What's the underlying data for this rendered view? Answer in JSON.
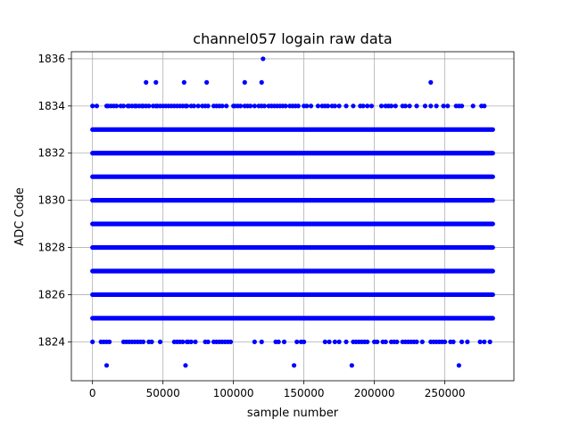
{
  "chart_data": {
    "type": "scatter",
    "title": "channel057 logain raw data",
    "xlabel": "sample number",
    "ylabel": "ADC Code",
    "xlim": [
      -15000,
      299000
    ],
    "ylim": [
      1822.35,
      1836.3
    ],
    "xticks": [
      0,
      50000,
      100000,
      150000,
      200000,
      250000
    ],
    "yticks": [
      1824,
      1826,
      1828,
      1830,
      1832,
      1834,
      1836
    ],
    "grid": true,
    "marker_color": "#0000ff",
    "x_range": [
      0,
      284000
    ],
    "dense_levels": [
      1825,
      1826,
      1827,
      1828,
      1829,
      1830,
      1831,
      1832,
      1833
    ],
    "sparse_level_1834_x": [
      0,
      3000,
      10000,
      11000,
      13000,
      15000,
      17000,
      20000,
      22000,
      25000,
      26000,
      28000,
      30000,
      31000,
      33000,
      35000,
      36000,
      38000,
      40000,
      43000,
      45000,
      46000,
      48000,
      50000,
      52000,
      54000,
      56000,
      58000,
      60000,
      62000,
      64000,
      66000,
      67000,
      70000,
      72000,
      75000,
      78000,
      80000,
      82000,
      86000,
      88000,
      90000,
      92000,
      95000,
      100000,
      101000,
      103000,
      105000,
      108000,
      110000,
      112000,
      115000,
      118000,
      120000,
      122000,
      125000,
      127000,
      129000,
      131000,
      133000,
      135000,
      137000,
      140000,
      142000,
      144000,
      146000,
      150000,
      152000,
      155000,
      160000,
      163000,
      165000,
      167000,
      170000,
      172000,
      175000,
      180000,
      185000,
      190000,
      192000,
      195000,
      198000,
      205000,
      208000,
      210000,
      212000,
      215000,
      220000,
      222000,
      225000,
      230000,
      236000,
      240000,
      244000,
      249000,
      252000,
      258000,
      260000,
      262000,
      270000,
      276000,
      278000
    ],
    "sparse_level_1824_x": [
      0,
      6000,
      8000,
      10000,
      12000,
      22000,
      24000,
      26000,
      28000,
      30000,
      32000,
      34000,
      36000,
      40000,
      42000,
      48000,
      58000,
      60000,
      62000,
      64000,
      67000,
      68000,
      70000,
      73000,
      80000,
      82000,
      86000,
      88000,
      90000,
      92000,
      94000,
      96000,
      98000,
      115000,
      120000,
      130000,
      132000,
      136000,
      145000,
      148000,
      150000,
      165000,
      168000,
      172000,
      175000,
      180000,
      185000,
      187000,
      189000,
      191000,
      193000,
      195000,
      200000,
      202000,
      206000,
      208000,
      212000,
      214000,
      216000,
      220000,
      222000,
      224000,
      226000,
      228000,
      230000,
      234000,
      240000,
      242000,
      244000,
      246000,
      248000,
      250000,
      254000,
      256000,
      262000,
      266000,
      275000,
      278000,
      282000
    ],
    "outliers": [
      {
        "x": 38000,
        "y": 1835
      },
      {
        "x": 45000,
        "y": 1835
      },
      {
        "x": 65000,
        "y": 1835
      },
      {
        "x": 81000,
        "y": 1835
      },
      {
        "x": 108000,
        "y": 1835
      },
      {
        "x": 120000,
        "y": 1835
      },
      {
        "x": 121000,
        "y": 1836
      },
      {
        "x": 240000,
        "y": 1835
      },
      {
        "x": 10000,
        "y": 1823
      },
      {
        "x": 66000,
        "y": 1823
      },
      {
        "x": 143000,
        "y": 1823
      },
      {
        "x": 184000,
        "y": 1823
      },
      {
        "x": 260000,
        "y": 1823
      }
    ]
  }
}
